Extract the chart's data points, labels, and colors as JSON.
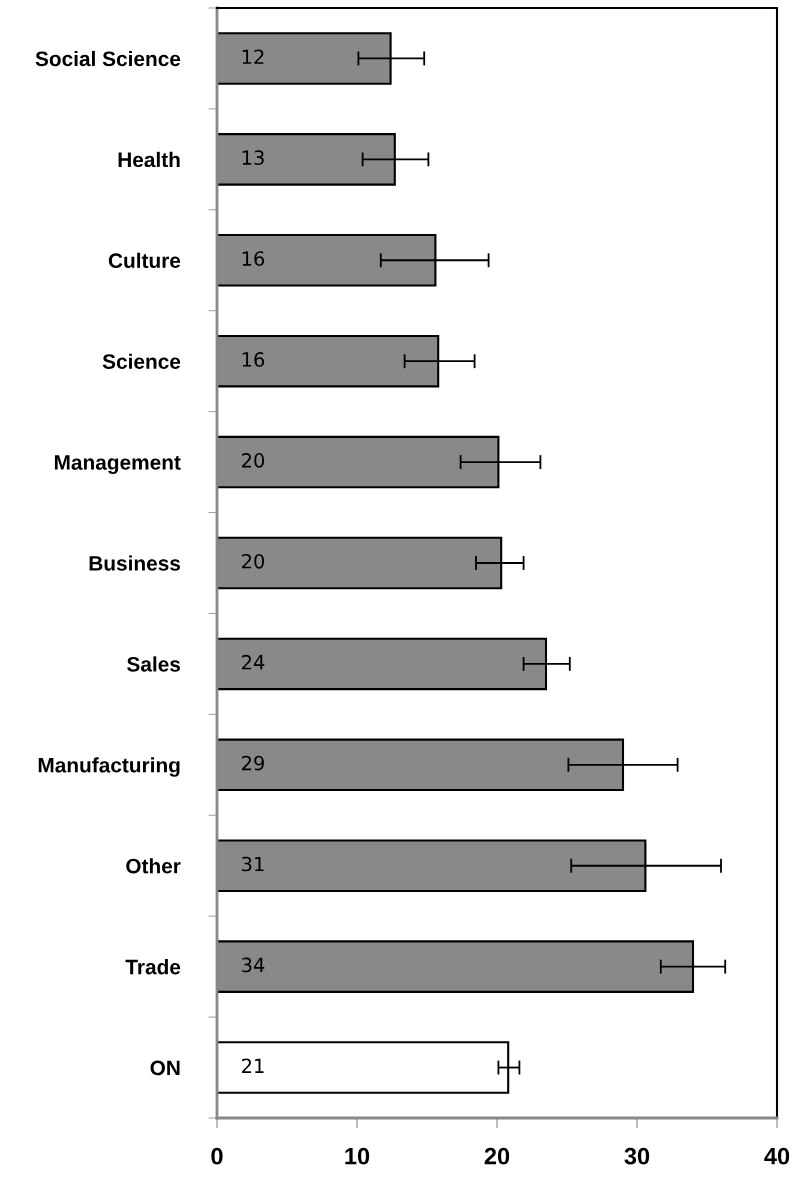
{
  "chart_data": {
    "type": "bar",
    "orientation": "horizontal",
    "categories": [
      "Social Science",
      "Health",
      "Culture",
      "Science",
      "Management",
      "Business",
      "Sales",
      "Manufacturing",
      "Other",
      "Trade",
      "ON"
    ],
    "values": [
      12.4,
      12.7,
      15.6,
      15.8,
      20.1,
      20.3,
      23.5,
      29.0,
      30.6,
      34.0,
      20.8
    ],
    "errors": [
      [
        10.1,
        14.8
      ],
      [
        10.4,
        15.1
      ],
      [
        11.7,
        19.4
      ],
      [
        13.4,
        18.4
      ],
      [
        17.4,
        23.1
      ],
      [
        18.5,
        21.9
      ],
      [
        21.9,
        25.2
      ],
      [
        25.1,
        32.9
      ],
      [
        25.3,
        36.0
      ],
      [
        31.7,
        36.3
      ],
      [
        20.1,
        21.6
      ]
    ],
    "value_labels": [
      "12",
      "13",
      "16",
      "16",
      "20",
      "20",
      "24",
      "29",
      "31",
      "34",
      "21"
    ],
    "colors": [
      "#898989",
      "#898989",
      "#898989",
      "#898989",
      "#898989",
      "#898989",
      "#898989",
      "#898989",
      "#898989",
      "#898989",
      "#ffffff"
    ],
    "xlim": [
      0,
      40
    ],
    "xticks": [
      0,
      10,
      20,
      30,
      40
    ],
    "grid": false,
    "legend": false
  }
}
